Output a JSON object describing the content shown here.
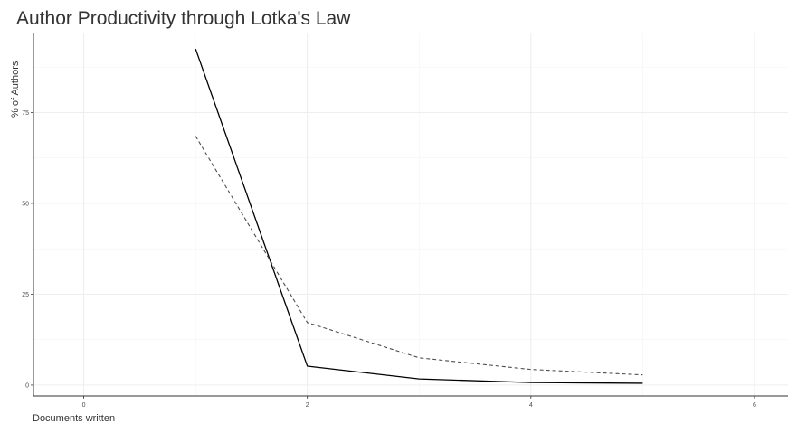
{
  "chart_data": {
    "type": "line",
    "title": "Author Productivity through Lotka's Law",
    "xlabel": "Documents written",
    "ylabel": "% of Authors",
    "xlim": [
      -0.45,
      6.3
    ],
    "ylim": [
      -3,
      97
    ],
    "x_ticks": [
      0,
      2,
      4,
      6
    ],
    "y_ticks": [
      0,
      25,
      50,
      75
    ],
    "x_tick_labels": [
      "0",
      "2",
      "4",
      "6"
    ],
    "y_tick_labels": [
      "0",
      "25",
      "50",
      "75"
    ],
    "grid": true,
    "legend": "none",
    "series": [
      {
        "style": "solid",
        "color": "#000000",
        "x": [
          1,
          2,
          3,
          4,
          5
        ],
        "y": [
          92.5,
          5.2,
          1.7,
          0.7,
          0.5
        ]
      },
      {
        "style": "dashed",
        "color": "#4d4d4d",
        "x": [
          1,
          2,
          3,
          4,
          5
        ],
        "y": [
          68.5,
          17.2,
          7.5,
          4.3,
          2.8
        ]
      }
    ]
  }
}
